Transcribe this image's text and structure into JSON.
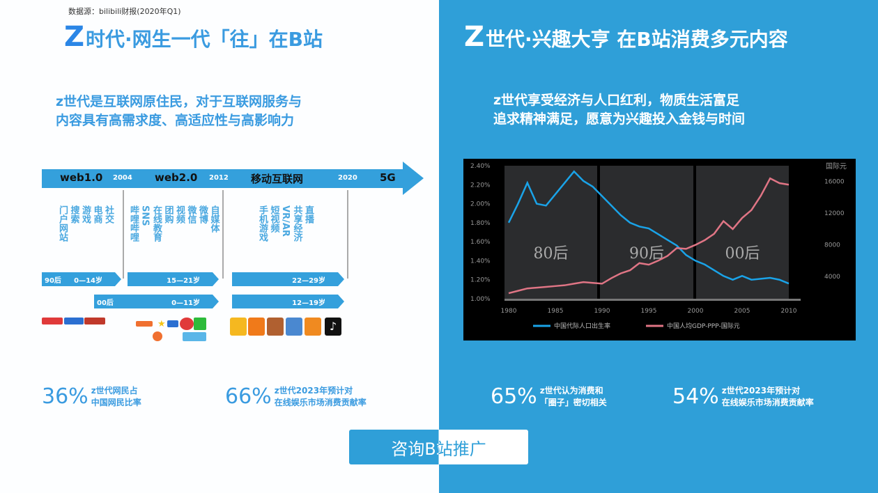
{
  "left": {
    "source": "数据源：bilibili财报(2020年Q1)",
    "title_z": "Z",
    "title": "时代·网生一代「往」在B站",
    "subtitle": [
      "z世代是互联网原住民，对于互联网服务与",
      "内容具有高需求度、高适应性与高影响力"
    ],
    "timeline": {
      "eras": [
        "web1.0",
        "web2.0",
        "移动互联网",
        "5G"
      ],
      "years": [
        "2004",
        "2012",
        "2020"
      ],
      "web1": [
        "门户网站",
        "搜索",
        "游戏",
        "电商",
        "社交"
      ],
      "web2": [
        "哔哩哔哩",
        "SNS",
        "在线教育",
        "团购",
        "视频",
        "微信",
        "微博",
        "自媒体"
      ],
      "mobile": [
        "手机游戏",
        "短视频",
        "VR/AR",
        "共享经济",
        "直播"
      ],
      "gen90": {
        "label": "90后",
        "ages": [
          "0—14岁",
          "15—21岁",
          "22—29岁"
        ]
      },
      "gen00": {
        "label": "00后",
        "ages": [
          "0—11岁",
          "12—19岁"
        ]
      }
    },
    "stats": [
      {
        "pct": "36%",
        "text": [
          "z世代网民占",
          "中国网民比率"
        ]
      },
      {
        "pct": "66%",
        "text": [
          "z世代2023年预计对",
          "在线娱乐市场消费贡献率"
        ]
      }
    ]
  },
  "right": {
    "title_z": "Z",
    "title": "世代·兴趣大亨  在B站消费多元内容",
    "subtitle": [
      "z世代享受经济与人口红利，物质生活富足",
      "追求精神满足，愿意为兴趣投入金钱与时间"
    ],
    "stats": [
      {
        "pct": "65%",
        "text": [
          "z世代认为消费和",
          "「圈子」密切相关"
        ]
      },
      {
        "pct": "54%",
        "text": [
          "z世代2023年预计对",
          "在线娱乐市场消费贡献率"
        ]
      }
    ]
  },
  "button": "咨询B站推广",
  "colors": {
    "blue": "#2f9fd8",
    "series_blue": "#1aa3e8",
    "series_red": "#e07585"
  },
  "chart_data": {
    "type": "line",
    "x": [
      1980,
      1981,
      1982,
      1983,
      1984,
      1985,
      1986,
      1987,
      1988,
      1989,
      1990,
      1991,
      1992,
      1993,
      1994,
      1995,
      1996,
      1997,
      1998,
      1999,
      2000,
      2001,
      2002,
      2003,
      2004,
      2005,
      2006,
      2007,
      2008,
      2009,
      2010
    ],
    "xticks": [
      "1980",
      "1985",
      "1990",
      "1995",
      "2000",
      "2005",
      "2010"
    ],
    "xlim": [
      1980,
      2010
    ],
    "y_left": {
      "ticks": [
        "1.00%",
        "1.20%",
        "1.40%",
        "1.60%",
        "1.80%",
        "2.00%",
        "2.20%",
        "2.40%"
      ],
      "lim": [
        1.0,
        2.4
      ]
    },
    "y_right": {
      "label": "国际元",
      "ticks": [
        "4000",
        "8000",
        "12000",
        "16000"
      ],
      "lim": [
        1200,
        18000
      ]
    },
    "bands": [
      "80后",
      "90后",
      "00后"
    ],
    "series": [
      {
        "name": "中国代际人口出生率",
        "axis": "left",
        "color": "#1aa3e8",
        "values": [
          1.8,
          2.0,
          2.22,
          2.0,
          1.98,
          2.1,
          2.22,
          2.34,
          2.24,
          2.18,
          2.08,
          1.98,
          1.88,
          1.8,
          1.76,
          1.74,
          1.68,
          1.62,
          1.56,
          1.46,
          1.4,
          1.36,
          1.3,
          1.24,
          1.2,
          1.24,
          1.2,
          1.21,
          1.22,
          1.2,
          1.16
        ]
      },
      {
        "name": "中国人均GDP-PPP-国际元",
        "axis": "right",
        "color": "#e07585",
        "values": [
          1900,
          2200,
          2500,
          2600,
          2700,
          2800,
          2900,
          3100,
          3300,
          3200,
          3100,
          3800,
          4400,
          4800,
          5700,
          5500,
          6000,
          6600,
          7600,
          7500,
          8000,
          8600,
          9400,
          11000,
          10000,
          11400,
          12400,
          14200,
          16400,
          15800,
          15600
        ]
      }
    ],
    "legend": "bottom",
    "grid": false
  }
}
